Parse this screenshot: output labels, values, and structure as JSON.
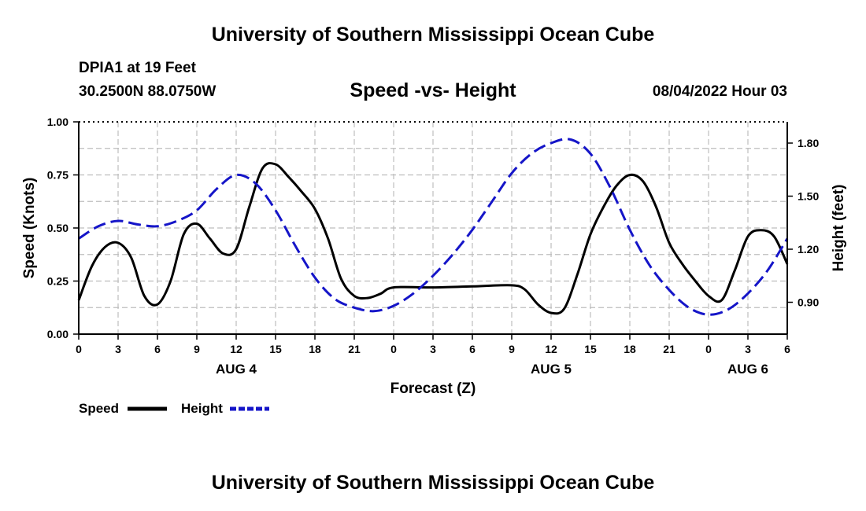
{
  "header": {
    "title": "University of Southern Mississippi Ocean Cube",
    "station": "DPIA1 at 19 Feet",
    "coordinates": "30.2500N  88.0750W",
    "chart_title": "Speed -vs- Height",
    "datetime": "08/04/2022 Hour 03"
  },
  "footer": {
    "title": "University of Southern Mississippi Ocean Cube"
  },
  "colors": {
    "speed": "#000000",
    "height": "#1515c8",
    "grid": "#bdbdbd"
  },
  "chart_data": {
    "type": "line",
    "title": "Speed -vs- Height",
    "xlabel": "Forecast (Z)",
    "ylabel": "Speed (Knots)",
    "y2label": "Height (feet)",
    "xlim": [
      0,
      54
    ],
    "ylim": [
      0,
      1.0
    ],
    "y2lim": [
      0.72,
      1.92
    ],
    "x_ticks": [
      0,
      3,
      6,
      9,
      12,
      15,
      18,
      21,
      24,
      27,
      30,
      33,
      36,
      39,
      42,
      45,
      48,
      51,
      54
    ],
    "x_tick_labels": [
      "0",
      "3",
      "6",
      "9",
      "12",
      "15",
      "18",
      "21",
      "0",
      "3",
      "6",
      "9",
      "12",
      "15",
      "18",
      "21",
      "0",
      "3",
      "6"
    ],
    "date_labels": [
      {
        "label": "AUG 4",
        "x": 12
      },
      {
        "label": "AUG 5",
        "x": 36
      },
      {
        "label": "AUG 6",
        "x": 51
      }
    ],
    "y_ticks": [
      0,
      0.25,
      0.5,
      0.75,
      1.0
    ],
    "y_tick_labels": [
      "0.00",
      "0.25",
      "0.50",
      "0.75",
      "1.00"
    ],
    "y2_ticks": [
      0.9,
      1.2,
      1.5,
      1.8
    ],
    "y2_tick_labels": [
      "0.90",
      "1.20",
      "1.50",
      "1.80"
    ],
    "grid": true,
    "series": [
      {
        "name": "Speed",
        "axis": "left",
        "style": "solid",
        "x": [
          0,
          1,
          2,
          3,
          4,
          5,
          6,
          7,
          8,
          9,
          10,
          11,
          12,
          13,
          14,
          15,
          16,
          17,
          18,
          19,
          20,
          21,
          22,
          23,
          24,
          27,
          30,
          33,
          34,
          35,
          36,
          37,
          38,
          39,
          40,
          41,
          42,
          43,
          44,
          45,
          46,
          47,
          48,
          49,
          50,
          51,
          52,
          53,
          54
        ],
        "values": [
          0.16,
          0.32,
          0.41,
          0.43,
          0.36,
          0.18,
          0.14,
          0.25,
          0.47,
          0.52,
          0.45,
          0.38,
          0.4,
          0.6,
          0.78,
          0.8,
          0.74,
          0.67,
          0.59,
          0.45,
          0.26,
          0.18,
          0.17,
          0.19,
          0.22,
          0.22,
          0.225,
          0.23,
          0.21,
          0.14,
          0.1,
          0.12,
          0.28,
          0.47,
          0.6,
          0.7,
          0.75,
          0.72,
          0.6,
          0.43,
          0.33,
          0.25,
          0.18,
          0.16,
          0.3,
          0.46,
          0.49,
          0.46,
          0.33
        ]
      },
      {
        "name": "Height",
        "axis": "right",
        "style": "dashed",
        "x": [
          0,
          1.5,
          3,
          4.5,
          6,
          7.5,
          9,
          10.5,
          12,
          13.5,
          15,
          16.5,
          18,
          19.5,
          21,
          22.5,
          24,
          25.5,
          27,
          28.5,
          30,
          31.5,
          33,
          34.5,
          36,
          37.5,
          39,
          40.5,
          42,
          43.5,
          45,
          46.5,
          48,
          49.5,
          51,
          52.5,
          54
        ],
        "values": [
          1.26,
          1.33,
          1.36,
          1.34,
          1.33,
          1.36,
          1.42,
          1.54,
          1.62,
          1.57,
          1.42,
          1.22,
          1.04,
          0.92,
          0.87,
          0.85,
          0.88,
          0.95,
          1.05,
          1.17,
          1.31,
          1.47,
          1.63,
          1.74,
          1.8,
          1.82,
          1.74,
          1.55,
          1.31,
          1.11,
          0.97,
          0.87,
          0.83,
          0.86,
          0.95,
          1.08,
          1.26
        ]
      }
    ],
    "legend": [
      {
        "label": "Speed",
        "style": "solid"
      },
      {
        "label": "Height",
        "style": "dashed"
      }
    ],
    "legend_position": "bottom-left"
  }
}
